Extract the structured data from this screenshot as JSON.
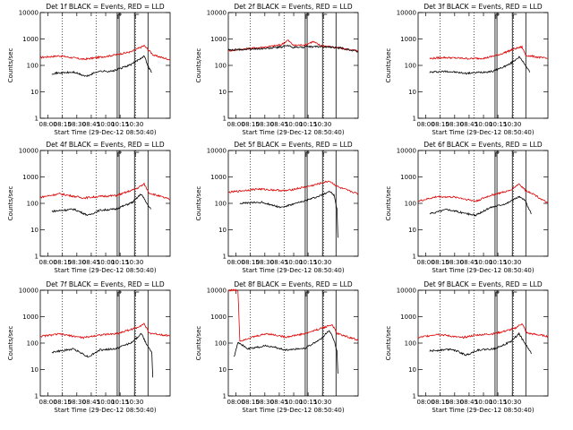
{
  "chart_data": {
    "type": "line",
    "title_prefix": "Det ",
    "title_suffix": " BLACK = Events, RED = LLD",
    "xlabel": "Start Time (29-Dec-12 08:50:40)",
    "ylabel": "Counts/sec",
    "y_scale": "log",
    "ylim": [
      1,
      10000
    ],
    "y_ticks": [
      "1",
      "10",
      "100",
      "1000",
      "10000"
    ],
    "xlim": [
      "07:50",
      "10:33"
    ],
    "x_ticks": [
      "08:00",
      "08:15",
      "08:30",
      "08:45",
      "10:00",
      "10:15",
      "10:30"
    ],
    "legend": [
      "BLACK = Events",
      "RED = LLD"
    ],
    "colors": {
      "events": "#000000",
      "lld": "#dd0000"
    },
    "series_names": [
      "Events",
      "LLD"
    ],
    "panels": [
      {
        "title": "1f",
        "lld": [
          [
            0,
            200
          ],
          [
            20,
            230
          ],
          [
            45,
            170
          ],
          [
            60,
            200
          ],
          [
            75,
            240
          ],
          [
            95,
            330
          ],
          [
            108,
            560
          ],
          [
            118,
            240
          ],
          [
            135,
            165
          ]
        ],
        "events": [
          [
            12,
            50
          ],
          [
            35,
            55
          ],
          [
            48,
            38
          ],
          [
            60,
            60
          ],
          [
            75,
            60
          ],
          [
            95,
            110
          ],
          [
            108,
            230
          ],
          [
            113,
            80
          ],
          [
            116,
            55
          ]
        ]
      },
      {
        "title": "2f",
        "lld": [
          [
            0,
            360
          ],
          [
            20,
            430
          ],
          [
            40,
            500
          ],
          [
            55,
            600
          ],
          [
            62,
            900
          ],
          [
            68,
            570
          ],
          [
            80,
            600
          ],
          [
            88,
            800
          ],
          [
            95,
            580
          ],
          [
            135,
            350
          ]
        ],
        "events": [
          [
            0,
            380
          ],
          [
            40,
            440
          ],
          [
            55,
            500
          ],
          [
            62,
            560
          ],
          [
            68,
            480
          ],
          [
            95,
            520
          ],
          [
            118,
            450
          ],
          [
            135,
            340
          ]
        ]
      },
      {
        "title": "3f",
        "lld": [
          [
            12,
            180
          ],
          [
            25,
            200
          ],
          [
            55,
            180
          ],
          [
            70,
            190
          ],
          [
            85,
            260
          ],
          [
            100,
            420
          ],
          [
            108,
            500
          ],
          [
            112,
            240
          ],
          [
            135,
            180
          ]
        ],
        "events": [
          [
            12,
            55
          ],
          [
            30,
            60
          ],
          [
            50,
            50
          ],
          [
            65,
            55
          ],
          [
            78,
            60
          ],
          [
            95,
            110
          ],
          [
            105,
            210
          ],
          [
            112,
            100
          ],
          [
            116,
            55
          ]
        ]
      },
      {
        "title": "4f",
        "lld": [
          [
            0,
            170
          ],
          [
            20,
            230
          ],
          [
            45,
            160
          ],
          [
            60,
            180
          ],
          [
            80,
            200
          ],
          [
            100,
            360
          ],
          [
            108,
            540
          ],
          [
            113,
            250
          ],
          [
            135,
            140
          ]
        ],
        "events": [
          [
            12,
            50
          ],
          [
            35,
            60
          ],
          [
            50,
            35
          ],
          [
            62,
            55
          ],
          [
            78,
            60
          ],
          [
            96,
            110
          ],
          [
            105,
            230
          ],
          [
            110,
            110
          ],
          [
            115,
            60
          ]
        ]
      },
      {
        "title": "5f",
        "lld": [
          [
            0,
            260
          ],
          [
            30,
            350
          ],
          [
            60,
            300
          ],
          [
            85,
            450
          ],
          [
            105,
            700
          ],
          [
            115,
            400
          ],
          [
            135,
            230
          ]
        ],
        "events": [
          [
            12,
            100
          ],
          [
            35,
            110
          ],
          [
            55,
            70
          ],
          [
            75,
            110
          ],
          [
            95,
            190
          ],
          [
            105,
            290
          ],
          [
            110,
            200
          ],
          [
            113,
            60
          ],
          [
            114,
            5
          ]
        ]
      },
      {
        "title": "6f",
        "lld": [
          [
            0,
            120
          ],
          [
            20,
            180
          ],
          [
            40,
            170
          ],
          [
            60,
            120
          ],
          [
            75,
            200
          ],
          [
            95,
            300
          ],
          [
            105,
            550
          ],
          [
            112,
            300
          ],
          [
            118,
            250
          ],
          [
            135,
            100
          ]
        ],
        "events": [
          [
            12,
            40
          ],
          [
            30,
            60
          ],
          [
            45,
            45
          ],
          [
            60,
            35
          ],
          [
            75,
            70
          ],
          [
            92,
            100
          ],
          [
            105,
            180
          ],
          [
            112,
            120
          ],
          [
            115,
            60
          ],
          [
            118,
            40
          ]
        ]
      },
      {
        "title": "7f",
        "lld": [
          [
            0,
            180
          ],
          [
            20,
            220
          ],
          [
            45,
            160
          ],
          [
            60,
            200
          ],
          [
            80,
            230
          ],
          [
            100,
            380
          ],
          [
            108,
            550
          ],
          [
            113,
            240
          ],
          [
            135,
            190
          ]
        ],
        "events": [
          [
            12,
            45
          ],
          [
            35,
            60
          ],
          [
            50,
            30
          ],
          [
            62,
            55
          ],
          [
            78,
            60
          ],
          [
            96,
            110
          ],
          [
            105,
            230
          ],
          [
            110,
            100
          ],
          [
            116,
            45
          ],
          [
            117,
            5
          ]
        ]
      },
      {
        "title": "8f",
        "lld": [
          [
            0,
            10000
          ],
          [
            5,
            10000
          ],
          [
            10,
            10000
          ],
          [
            12,
            120
          ],
          [
            20,
            150
          ],
          [
            40,
            230
          ],
          [
            60,
            170
          ],
          [
            80,
            230
          ],
          [
            100,
            400
          ],
          [
            108,
            500
          ],
          [
            113,
            230
          ],
          [
            135,
            130
          ]
        ],
        "events": [
          [
            6,
            30
          ],
          [
            10,
            110
          ],
          [
            20,
            60
          ],
          [
            40,
            80
          ],
          [
            60,
            55
          ],
          [
            80,
            65
          ],
          [
            96,
            140
          ],
          [
            105,
            300
          ],
          [
            110,
            130
          ],
          [
            113,
            50
          ],
          [
            114,
            7
          ]
        ]
      },
      {
        "title": "9f",
        "lld": [
          [
            0,
            160
          ],
          [
            20,
            220
          ],
          [
            45,
            160
          ],
          [
            60,
            200
          ],
          [
            80,
            230
          ],
          [
            100,
            350
          ],
          [
            108,
            550
          ],
          [
            113,
            240
          ],
          [
            135,
            180
          ]
        ],
        "events": [
          [
            12,
            50
          ],
          [
            35,
            60
          ],
          [
            50,
            35
          ],
          [
            62,
            55
          ],
          [
            78,
            60
          ],
          [
            96,
            110
          ],
          [
            105,
            230
          ],
          [
            110,
            110
          ],
          [
            115,
            60
          ],
          [
            118,
            40
          ]
        ]
      }
    ]
  }
}
